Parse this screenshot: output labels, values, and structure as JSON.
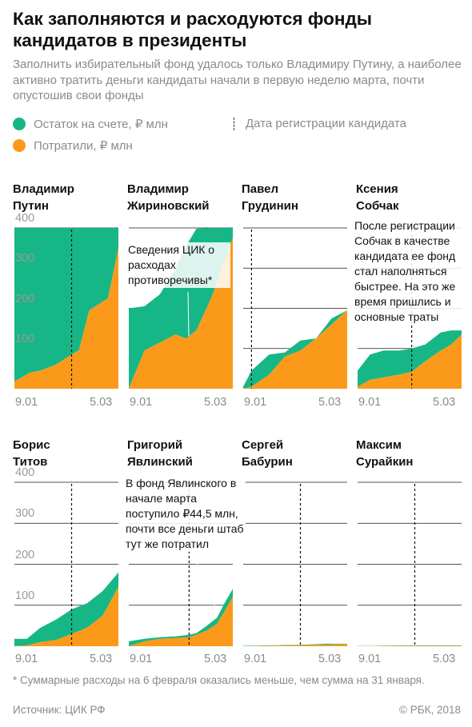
{
  "title": "Как заполняются и расходуются фонды кандидатов в президенты",
  "subtitle": "Заполнить избирательный фонд удалось только Владимиру Путину, а наиболее активно тратить деньги кандидаты начали в первую неделю марта, почти опустошив свои фонды",
  "legend": {
    "balance": "Остаток на счете, ₽ млн",
    "spent": "Потратили, ₽ млн",
    "registration": "Дата регистрации кандидата"
  },
  "colors": {
    "balance": "#17b686",
    "spent": "#fb9a1a",
    "grid": "#1a1a1a",
    "dash": "#111111"
  },
  "footnote": "* Суммарные расходы на 6 февраля оказались меньше, чем сумма на 31 января.",
  "source": "Источник: ЦИК РФ",
  "copyright": "© РБК, 2018",
  "chart_data": {
    "type": "area",
    "x_range": [
      "9.01",
      "5.03"
    ],
    "xticks": [
      "9.01",
      "5.03"
    ],
    "yticks": [
      100,
      200,
      300,
      400
    ],
    "ylim": [
      0,
      400
    ],
    "panels": [
      {
        "name_line1": "Владимир",
        "name_line2": "Путин",
        "registration": 0.55,
        "x": [
          0,
          0.15,
          0.25,
          0.4,
          0.55,
          0.62,
          0.72,
          0.9,
          1
        ],
        "spent": [
          18,
          40,
          45,
          60,
          85,
          95,
          195,
          225,
          350
        ],
        "total": [
          400,
          400,
          400,
          400,
          400,
          400,
          400,
          400,
          400
        ]
      },
      {
        "name_line1": "Владимир",
        "name_line2": "Жириновский",
        "registration": null,
        "annotation": "Сведения ЦИК о расходах противоречивы*",
        "x": [
          0,
          0.15,
          0.3,
          0.45,
          0.55,
          0.65,
          0.8,
          1
        ],
        "spent": [
          0,
          95,
          115,
          135,
          125,
          145,
          230,
          375
        ],
        "total": [
          200,
          205,
          235,
          300,
          355,
          398,
          400,
          400
        ]
      },
      {
        "name_line1": "Павел",
        "name_line2": "Грудинин",
        "registration": 0.08,
        "x": [
          0,
          0.08,
          0.25,
          0.4,
          0.55,
          0.7,
          0.85,
          1
        ],
        "spent": [
          0,
          5,
          35,
          80,
          95,
          125,
          160,
          195
        ],
        "total": [
          5,
          45,
          85,
          90,
          120,
          125,
          175,
          195
        ]
      },
      {
        "name_line1": "Ксения",
        "name_line2": "Собчак",
        "registration": 0.52,
        "annotation": "После регистрации Собчак в качестве кандидата ее фонд стал наполняться быстрее. На это же время пришлись и основные траты",
        "x": [
          0,
          0.12,
          0.25,
          0.4,
          0.52,
          0.65,
          0.8,
          0.9,
          1
        ],
        "spent": [
          5,
          22,
          28,
          35,
          42,
          68,
          95,
          110,
          135
        ],
        "total": [
          45,
          85,
          95,
          95,
          100,
          110,
          140,
          145,
          145
        ]
      },
      {
        "name_line1": "Борис",
        "name_line2": "Титов",
        "registration": 0.55,
        "x": [
          0,
          0.12,
          0.25,
          0.4,
          0.55,
          0.7,
          0.85,
          1
        ],
        "spent": [
          0,
          2,
          10,
          15,
          30,
          45,
          75,
          145
        ],
        "total": [
          18,
          18,
          45,
          65,
          90,
          105,
          135,
          180
        ]
      },
      {
        "name_line1": "Григорий",
        "name_line2": "Явлинский",
        "registration": 0.58,
        "annotation": "В фонд Явлинского в начале марта поступило ₽44,5 млн, почти все деньги штаб тут же потратил",
        "x": [
          0,
          0.15,
          0.3,
          0.45,
          0.58,
          0.65,
          0.75,
          0.85,
          0.92,
          1
        ],
        "spent": [
          0,
          12,
          18,
          20,
          22,
          28,
          38,
          55,
          85,
          120
        ],
        "total": [
          12,
          18,
          22,
          24,
          28,
          32,
          50,
          70,
          105,
          140
        ]
      },
      {
        "name_line1": "Сергей",
        "name_line2": "Бабурин",
        "registration": 0.55,
        "x": [
          0,
          0.2,
          0.4,
          0.6,
          0.8,
          1
        ],
        "spent": [
          0,
          1,
          2,
          3,
          4,
          5
        ],
        "total": [
          1,
          2,
          3,
          4,
          6,
          6
        ]
      },
      {
        "name_line1": "Максим",
        "name_line2": "Сурайкин",
        "registration": 0.55,
        "x": [
          0,
          0.25,
          0.5,
          0.75,
          1
        ],
        "spent": [
          0,
          1,
          1,
          1,
          1
        ],
        "total": [
          0.5,
          1.5,
          2,
          2,
          2
        ]
      }
    ]
  }
}
